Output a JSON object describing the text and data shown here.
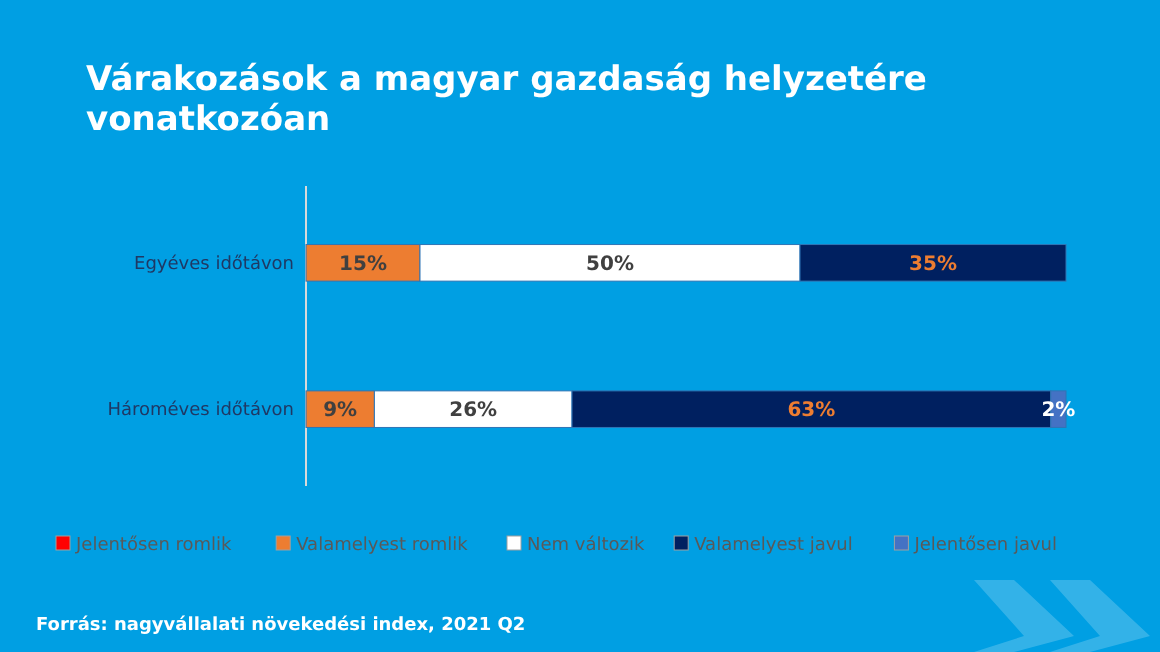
{
  "chart_data": {
    "type": "bar",
    "orientation": "horizontal",
    "stacked": true,
    "title": "Várakozások a magyar gazdaság helyzetére vonatkozóan",
    "categories": [
      "Egyéves időtávon",
      "Hároméves időtávon"
    ],
    "series": [
      {
        "name": "Jelentősen romlik",
        "color": "#ff0000",
        "values": [
          0,
          0
        ],
        "value_labels": [
          null,
          null
        ]
      },
      {
        "name": "Valamelyest romlik",
        "color": "#ed7d31",
        "values": [
          15,
          9
        ],
        "value_labels": [
          "15%",
          "9%"
        ]
      },
      {
        "name": "Nem változik",
        "color": "#ffffff",
        "values": [
          50,
          26
        ],
        "value_labels": [
          "50%",
          "26%"
        ]
      },
      {
        "name": "Valamelyest javul",
        "color": "#002060",
        "values": [
          35,
          63
        ],
        "value_labels": [
          "35%",
          "63%"
        ]
      },
      {
        "name": "Jelentősen javul",
        "color": "#4472c4",
        "values": [
          0,
          2
        ],
        "value_labels": [
          null,
          "2%"
        ]
      }
    ],
    "legend": "bottom",
    "annotations": [
      "Forrás: nagyvállalati növekedési index, 2021 Q2"
    ]
  }
}
